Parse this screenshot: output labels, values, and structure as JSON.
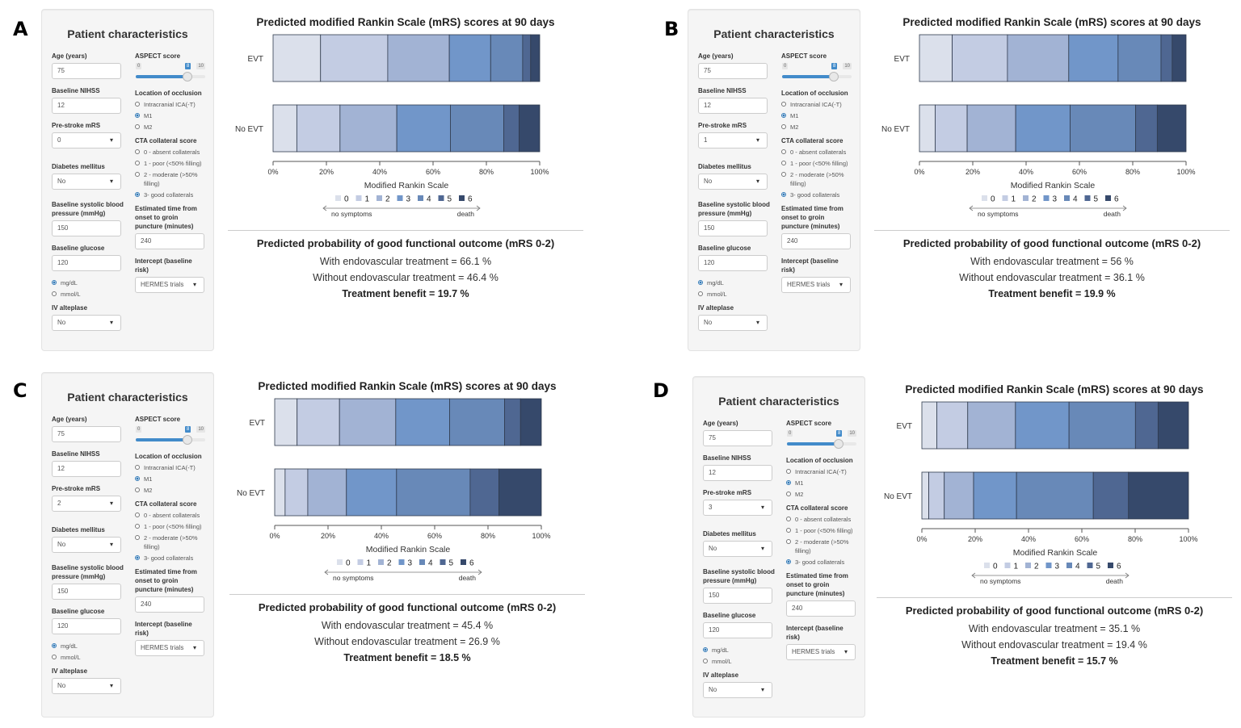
{
  "common": {
    "sidebar_title": "Patient characteristics",
    "labels": {
      "age": "Age (years)",
      "nihss": "Baseline NIHSS",
      "prestroke": "Pre-stroke mRS",
      "diabetes": "Diabetes mellitus",
      "sbp": "Baseline systolic blood pressure (mmHg)",
      "glucose": "Baseline glucose",
      "alteplase": "IV alteplase",
      "aspect": "ASPECT score",
      "occlusion": "Location of occlusion",
      "collateral": "CTA collateral score",
      "time": "Estimated time from onset to groin puncture (minutes)",
      "intercept": "Intercept (baseline risk)"
    },
    "aspect_min": "0",
    "aspect_max": "10",
    "occlusion_options": [
      "Intracranial ICA(-T)",
      "M1",
      "M2"
    ],
    "collateral_options": [
      "0 - absent collaterals",
      "1 - poor (<50% filling)",
      "2 - moderate (>50% filling)",
      "3- good collaterals"
    ],
    "glucose_units": [
      "mg/dL",
      "mmol/L"
    ],
    "chart_title": "Predicted modified Rankin Scale (mRS) scores at 90 days",
    "xlabel": "Modified Rankin Scale",
    "row_labels": [
      "EVT",
      "No EVT"
    ],
    "xticks": [
      "0%",
      "20%",
      "40%",
      "60%",
      "80%",
      "100%"
    ],
    "legend": [
      "0",
      "1",
      "2",
      "3",
      "4",
      "5",
      "6"
    ],
    "legend_left": "no symptoms",
    "legend_right": "death",
    "colors": [
      "#dbe0eb",
      "#c3cce3",
      "#a2b3d4",
      "#7196c9",
      "#6889b8",
      "#4f6792",
      "#36496b"
    ],
    "outcome_heading": "Predicted probability of good functional outcome (mRS 0-2)"
  },
  "panels": [
    {
      "letter": "A",
      "inputs": {
        "age": "75",
        "nihss": "12",
        "prestroke": "0",
        "diabetes": "No",
        "sbp": "150",
        "glucose": "120",
        "alteplase": "No",
        "aspect": "8",
        "occlusion": "M1",
        "collateral": "3- good collaterals",
        "glucose_unit": "mg/dL",
        "time": "240",
        "intercept": "HERMES trials"
      },
      "with_text": "With endovascular treatment = 66.1 %",
      "without_text": "Without endovascular treatment = 46.4 %",
      "benefit_text": "Treatment benefit = 19.7 %"
    },
    {
      "letter": "B",
      "inputs": {
        "age": "75",
        "nihss": "12",
        "prestroke": "1",
        "diabetes": "No",
        "sbp": "150",
        "glucose": "120",
        "alteplase": "No",
        "aspect": "8",
        "occlusion": "M1",
        "collateral": "3- good collaterals",
        "glucose_unit": "mg/dL",
        "time": "240",
        "intercept": "HERMES trials"
      },
      "with_text": "With endovascular treatment = 56 %",
      "without_text": "Without endovascular treatment = 36.1 %",
      "benefit_text": "Treatment benefit = 19.9 %"
    },
    {
      "letter": "C",
      "inputs": {
        "age": "75",
        "nihss": "12",
        "prestroke": "2",
        "diabetes": "No",
        "sbp": "150",
        "glucose": "120",
        "alteplase": "No",
        "aspect": "8",
        "occlusion": "M1",
        "collateral": "3- good collaterals",
        "glucose_unit": "mg/dL",
        "time": "240",
        "intercept": "HERMES trials"
      },
      "with_text": "With endovascular treatment = 45.4 %",
      "without_text": "Without endovascular treatment = 26.9 %",
      "benefit_text": "Treatment benefit = 18.5 %"
    },
    {
      "letter": "D",
      "inputs": {
        "age": "75",
        "nihss": "12",
        "prestroke": "3",
        "diabetes": "No",
        "sbp": "150",
        "glucose": "120",
        "alteplase": "No",
        "aspect": "8",
        "occlusion": "M1",
        "collateral": "3- good collaterals",
        "glucose_unit": "mg/dL",
        "time": "240",
        "intercept": "HERMES trials"
      },
      "with_text": "With endovascular treatment = 35.1 %",
      "without_text": "Without endovascular treatment = 19.4 %",
      "benefit_text": "Treatment benefit = 15.7 %"
    }
  ],
  "chart_data": [
    {
      "type": "bar",
      "stacked": true,
      "orientation": "horizontal",
      "title": "Predicted modified Rankin Scale (mRS) scores at 90 days",
      "xlabel": "Modified Rankin Scale",
      "ylabel": "",
      "categories": [
        "EVT",
        "No EVT"
      ],
      "xlim": [
        0,
        100
      ],
      "legend_placement": "bottom",
      "series": [
        {
          "name": "0",
          "values": [
            17.8,
            8.9
          ]
        },
        {
          "name": "1",
          "values": [
            25.2,
            16.2
          ]
        },
        {
          "name": "2",
          "values": [
            23.1,
            21.3
          ]
        },
        {
          "name": "3",
          "values": [
            15.5,
            20.1
          ]
        },
        {
          "name": "4",
          "values": [
            12.0,
            20.0
          ]
        },
        {
          "name": "5",
          "values": [
            3.0,
            5.8
          ]
        },
        {
          "name": "6",
          "values": [
            3.4,
            7.7
          ]
        }
      ]
    },
    {
      "type": "bar",
      "stacked": true,
      "orientation": "horizontal",
      "title": "Predicted modified Rankin Scale (mRS) scores at 90 days",
      "xlabel": "Modified Rankin Scale",
      "ylabel": "",
      "categories": [
        "EVT",
        "No EVT"
      ],
      "xlim": [
        0,
        100
      ],
      "legend_placement": "bottom",
      "series": [
        {
          "name": "0",
          "values": [
            12.3,
            5.9
          ]
        },
        {
          "name": "1",
          "values": [
            20.7,
            12.0
          ]
        },
        {
          "name": "2",
          "values": [
            23.0,
            18.2
          ]
        },
        {
          "name": "3",
          "values": [
            18.5,
            20.4
          ]
        },
        {
          "name": "4",
          "values": [
            16.1,
            24.6
          ]
        },
        {
          "name": "5",
          "values": [
            4.2,
            8.1
          ]
        },
        {
          "name": "6",
          "values": [
            5.2,
            10.8
          ]
        }
      ]
    },
    {
      "type": "bar",
      "stacked": true,
      "orientation": "horizontal",
      "title": "Predicted modified Rankin Scale (mRS) scores at 90 days",
      "xlabel": "Modified Rankin Scale",
      "ylabel": "",
      "categories": [
        "EVT",
        "No EVT"
      ],
      "xlim": [
        0,
        100
      ],
      "legend_placement": "bottom",
      "series": [
        {
          "name": "0",
          "values": [
            8.4,
            3.9
          ]
        },
        {
          "name": "1",
          "values": [
            15.9,
            8.5
          ]
        },
        {
          "name": "2",
          "values": [
            21.1,
            14.5
          ]
        },
        {
          "name": "3",
          "values": [
            20.2,
            18.8
          ]
        },
        {
          "name": "4",
          "values": [
            20.6,
            27.6
          ]
        },
        {
          "name": "5",
          "values": [
            6.0,
            10.8
          ]
        },
        {
          "name": "6",
          "values": [
            7.8,
            15.9
          ]
        }
      ]
    },
    {
      "type": "bar",
      "stacked": true,
      "orientation": "horizontal",
      "title": "Predicted modified Rankin Scale (mRS) scores at 90 days",
      "xlabel": "Modified Rankin Scale",
      "ylabel": "",
      "categories": [
        "EVT",
        "No EVT"
      ],
      "xlim": [
        0,
        100
      ],
      "legend_placement": "bottom",
      "series": [
        {
          "name": "0",
          "values": [
            5.6,
            2.6
          ]
        },
        {
          "name": "1",
          "values": [
            11.6,
            5.8
          ]
        },
        {
          "name": "2",
          "values": [
            17.9,
            11.0
          ]
        },
        {
          "name": "3",
          "values": [
            20.1,
            16.1
          ]
        },
        {
          "name": "4",
          "values": [
            24.9,
            28.8
          ]
        },
        {
          "name": "5",
          "values": [
            8.5,
            13.2
          ]
        },
        {
          "name": "6",
          "values": [
            11.4,
            22.5
          ]
        }
      ]
    }
  ]
}
